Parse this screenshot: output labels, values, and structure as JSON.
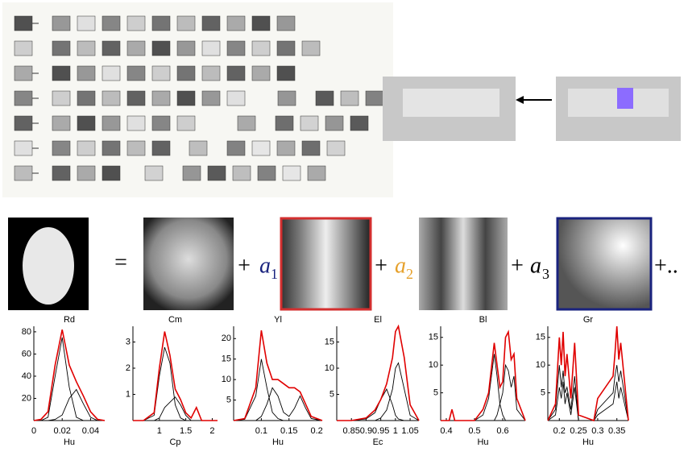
{
  "equation": {
    "equals": "=",
    "plus": "+",
    "terms": [
      {
        "coef": "a",
        "sub": "1"
      },
      {
        "coef": "a",
        "sub": "2"
      },
      {
        "coef": "a",
        "sub": "3"
      }
    ],
    "tail": "+.."
  },
  "chart_data": [
    {
      "type": "line",
      "title": "Rd",
      "xlabel": "Hu",
      "x": [
        0,
        0.005,
        0.01,
        0.015,
        0.02,
        0.025,
        0.03,
        0.035,
        0.04,
        0.045,
        0.05
      ],
      "xlim": [
        0,
        0.05
      ],
      "xticks": [
        0,
        0.02,
        0.04
      ],
      "ylim": [
        0,
        85
      ],
      "yticks": [
        20,
        40,
        60,
        80
      ],
      "series": [
        {
          "color": "#e00000",
          "values": [
            0,
            1,
            8,
            50,
            82,
            50,
            35,
            22,
            8,
            1,
            0
          ]
        },
        {
          "color": "#000000",
          "values": [
            0,
            0,
            3,
            40,
            75,
            30,
            3,
            0,
            0,
            0,
            0
          ]
        },
        {
          "color": "#000000",
          "values": [
            0,
            0,
            0,
            1,
            5,
            20,
            28,
            15,
            3,
            0,
            0
          ]
        }
      ]
    },
    {
      "type": "line",
      "title": "Cm",
      "xlabel": "Cp",
      "x": [
        0.5,
        0.7,
        0.9,
        1.0,
        1.1,
        1.2,
        1.3,
        1.4,
        1.5,
        1.6,
        1.7,
        1.8,
        2.1
      ],
      "xlim": [
        0.5,
        2.1
      ],
      "xticks": [
        1,
        1.5,
        2
      ],
      "ylim": [
        0,
        3.6
      ],
      "yticks": [
        1,
        2,
        3
      ],
      "series": [
        {
          "color": "#e00000",
          "values": [
            0,
            0,
            0.3,
            2,
            3.4,
            2.5,
            1.2,
            0.8,
            0.3,
            0.1,
            0.5,
            0,
            0
          ]
        },
        {
          "color": "#000000",
          "values": [
            0,
            0,
            0.2,
            1.7,
            2.8,
            2.2,
            0.6,
            0.1,
            0,
            0,
            0,
            0,
            0
          ]
        },
        {
          "color": "#000000",
          "values": [
            0,
            0,
            0,
            0.1,
            0.5,
            0.7,
            0.9,
            0.6,
            0.2,
            0,
            0,
            0,
            0
          ]
        }
      ]
    },
    {
      "type": "line",
      "title": "Yl",
      "xlabel": "Hu",
      "x": [
        0.05,
        0.07,
        0.09,
        0.1,
        0.11,
        0.12,
        0.13,
        0.14,
        0.15,
        0.16,
        0.17,
        0.18,
        0.19,
        0.21
      ],
      "xlim": [
        0.05,
        0.21
      ],
      "xticks": [
        0.1,
        0.15,
        0.2
      ],
      "ylim": [
        0,
        23
      ],
      "yticks": [
        5,
        10,
        15,
        20
      ],
      "series": [
        {
          "color": "#e00000",
          "values": [
            0,
            0.5,
            8,
            22,
            14,
            10,
            10,
            9,
            8,
            8,
            7,
            4,
            1,
            0
          ]
        },
        {
          "color": "#000000",
          "values": [
            0,
            0.3,
            6,
            15,
            8,
            2,
            0.5,
            0,
            0,
            0,
            0,
            0,
            0,
            0
          ]
        },
        {
          "color": "#000000",
          "values": [
            0,
            0,
            0,
            1,
            4,
            8,
            6,
            2,
            1,
            3,
            6,
            3,
            0.5,
            0
          ]
        }
      ]
    },
    {
      "type": "line",
      "title": "El",
      "xlabel": "Ec",
      "x": [
        0.8,
        0.85,
        0.9,
        0.93,
        0.95,
        0.97,
        0.99,
        1.0,
        1.01,
        1.03,
        1.05,
        1.08
      ],
      "xlim": [
        0.8,
        1.08
      ],
      "xticks": [
        0.85,
        0.9,
        0.95,
        1,
        1.05
      ],
      "ylim": [
        0,
        18
      ],
      "yticks": [
        5,
        10,
        15
      ],
      "series": [
        {
          "color": "#e00000",
          "values": [
            0,
            0,
            0.5,
            2,
            4,
            7,
            12,
            17,
            18,
            12,
            3,
            0
          ]
        },
        {
          "color": "#000000",
          "values": [
            0,
            0,
            0.3,
            1.5,
            4,
            6,
            3,
            1,
            0.3,
            0,
            0,
            0
          ]
        },
        {
          "color": "#000000",
          "values": [
            0,
            0,
            0,
            0,
            0.5,
            2,
            6,
            10,
            11,
            6,
            1,
            0
          ]
        }
      ]
    },
    {
      "type": "line",
      "title": "Bl",
      "xlabel": "Hu",
      "x": [
        0.38,
        0.41,
        0.42,
        0.43,
        0.5,
        0.53,
        0.55,
        0.57,
        0.58,
        0.59,
        0.6,
        0.61,
        0.62,
        0.63,
        0.64,
        0.65,
        0.68
      ],
      "xlim": [
        0.38,
        0.68
      ],
      "xticks": [
        0.4,
        0.5,
        0.6
      ],
      "ylim": [
        0,
        17
      ],
      "yticks": [
        5,
        10,
        15
      ],
      "series": [
        {
          "color": "#e00000",
          "values": [
            0,
            0,
            2,
            0,
            0,
            2,
            5,
            14,
            10,
            6,
            7,
            15,
            16,
            11,
            12,
            4,
            0
          ]
        },
        {
          "color": "#000000",
          "values": [
            0,
            0,
            0,
            0,
            0,
            1,
            4,
            12,
            8,
            3,
            1,
            0,
            0,
            0,
            0,
            0,
            0
          ]
        },
        {
          "color": "#000000",
          "values": [
            0,
            0,
            0,
            0,
            0,
            0,
            0,
            0,
            1,
            3,
            5,
            10,
            9,
            6,
            8,
            2,
            0
          ]
        }
      ]
    },
    {
      "type": "line",
      "title": "Gr",
      "xlabel": "Hu",
      "x": [
        0.17,
        0.19,
        0.2,
        0.205,
        0.21,
        0.215,
        0.22,
        0.23,
        0.24,
        0.25,
        0.29,
        0.3,
        0.34,
        0.345,
        0.35,
        0.355,
        0.36,
        0.38
      ],
      "xlim": [
        0.17,
        0.38
      ],
      "xticks": [
        0.2,
        0.25,
        0.3,
        0.35
      ],
      "ylim": [
        0,
        17
      ],
      "yticks": [
        5,
        10,
        15
      ],
      "series": [
        {
          "color": "#e00000",
          "values": [
            0,
            3,
            15,
            10,
            16,
            8,
            12,
            4,
            14,
            1,
            0,
            4,
            8,
            12,
            17,
            11,
            14,
            0
          ]
        },
        {
          "color": "#000000",
          "values": [
            0,
            2,
            10,
            6,
            9,
            5,
            6,
            2,
            8,
            0,
            0,
            2,
            5,
            8,
            10,
            7,
            9,
            0
          ]
        },
        {
          "color": "#000000",
          "values": [
            0,
            1,
            6,
            4,
            7,
            3,
            5,
            1,
            6,
            0,
            0,
            1,
            3,
            5,
            7,
            4,
            6,
            0
          ]
        }
      ]
    }
  ]
}
